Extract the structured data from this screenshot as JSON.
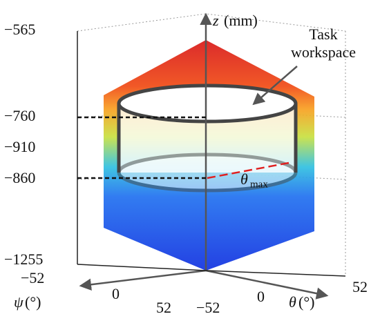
{
  "axes": {
    "z": {
      "symbol": "z",
      "unit": "(mm)",
      "ticks": [
        "−565",
        "−760",
        "−910",
        "−860",
        "−1255"
      ]
    },
    "psi": {
      "symbol": "ψ",
      "unit": "(°)",
      "ticks": [
        "−52",
        "0",
        "52"
      ]
    },
    "theta": {
      "symbol": "θ",
      "unit": "(°)",
      "ticks": [
        "−52",
        "0",
        "52"
      ]
    }
  },
  "annotations": {
    "task_workspace": [
      "Task",
      "workspace"
    ],
    "theta_max": {
      "symbol": "θ",
      "subscript": "max"
    }
  }
}
